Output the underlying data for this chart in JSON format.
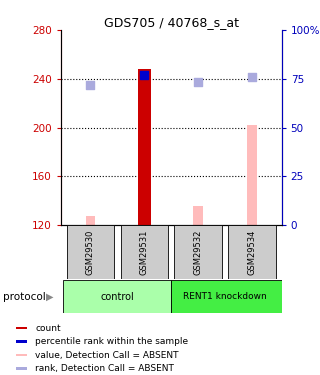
{
  "title": "GDS705 / 40768_s_at",
  "samples": [
    "GSM29530",
    "GSM29531",
    "GSM29532",
    "GSM29534"
  ],
  "x_positions": [
    0,
    1,
    2,
    3
  ],
  "ylim_left": [
    120,
    280
  ],
  "ylim_right": [
    0,
    100
  ],
  "yticks_left": [
    120,
    160,
    200,
    240,
    280
  ],
  "yticks_right": [
    0,
    25,
    50,
    75,
    100
  ],
  "ytick_labels_right": [
    "0",
    "25",
    "50",
    "75",
    "100%"
  ],
  "red_bars": [
    null,
    248,
    null,
    null
  ],
  "pink_bars": [
    127,
    null,
    136,
    202
  ],
  "blue_dot_right_axis": [
    null,
    77,
    null,
    null
  ],
  "light_blue_right_axis": [
    72,
    null,
    73.5,
    76
  ],
  "red_bar_width": 0.25,
  "pink_bar_width": 0.18,
  "dot_size": 30,
  "red_color": "#cc0000",
  "pink_color": "#ffbbbb",
  "blue_color": "#0000cc",
  "light_blue_color": "#aaaadd",
  "left_axis_color": "#cc0000",
  "right_axis_color": "#0000bb",
  "sample_box_color": "#cccccc",
  "ctrl_color": "#aaffaa",
  "rent_color": "#44ee44",
  "legend_items": [
    {
      "color": "#cc0000",
      "label": "count"
    },
    {
      "color": "#0000cc",
      "label": "percentile rank within the sample"
    },
    {
      "color": "#ffbbbb",
      "label": "value, Detection Call = ABSENT"
    },
    {
      "color": "#aaaadd",
      "label": "rank, Detection Call = ABSENT"
    }
  ],
  "groups": [
    {
      "label": "control",
      "samples": [
        0,
        1
      ]
    },
    {
      "label": "RENT1 knockdown",
      "samples": [
        2,
        3
      ]
    }
  ]
}
